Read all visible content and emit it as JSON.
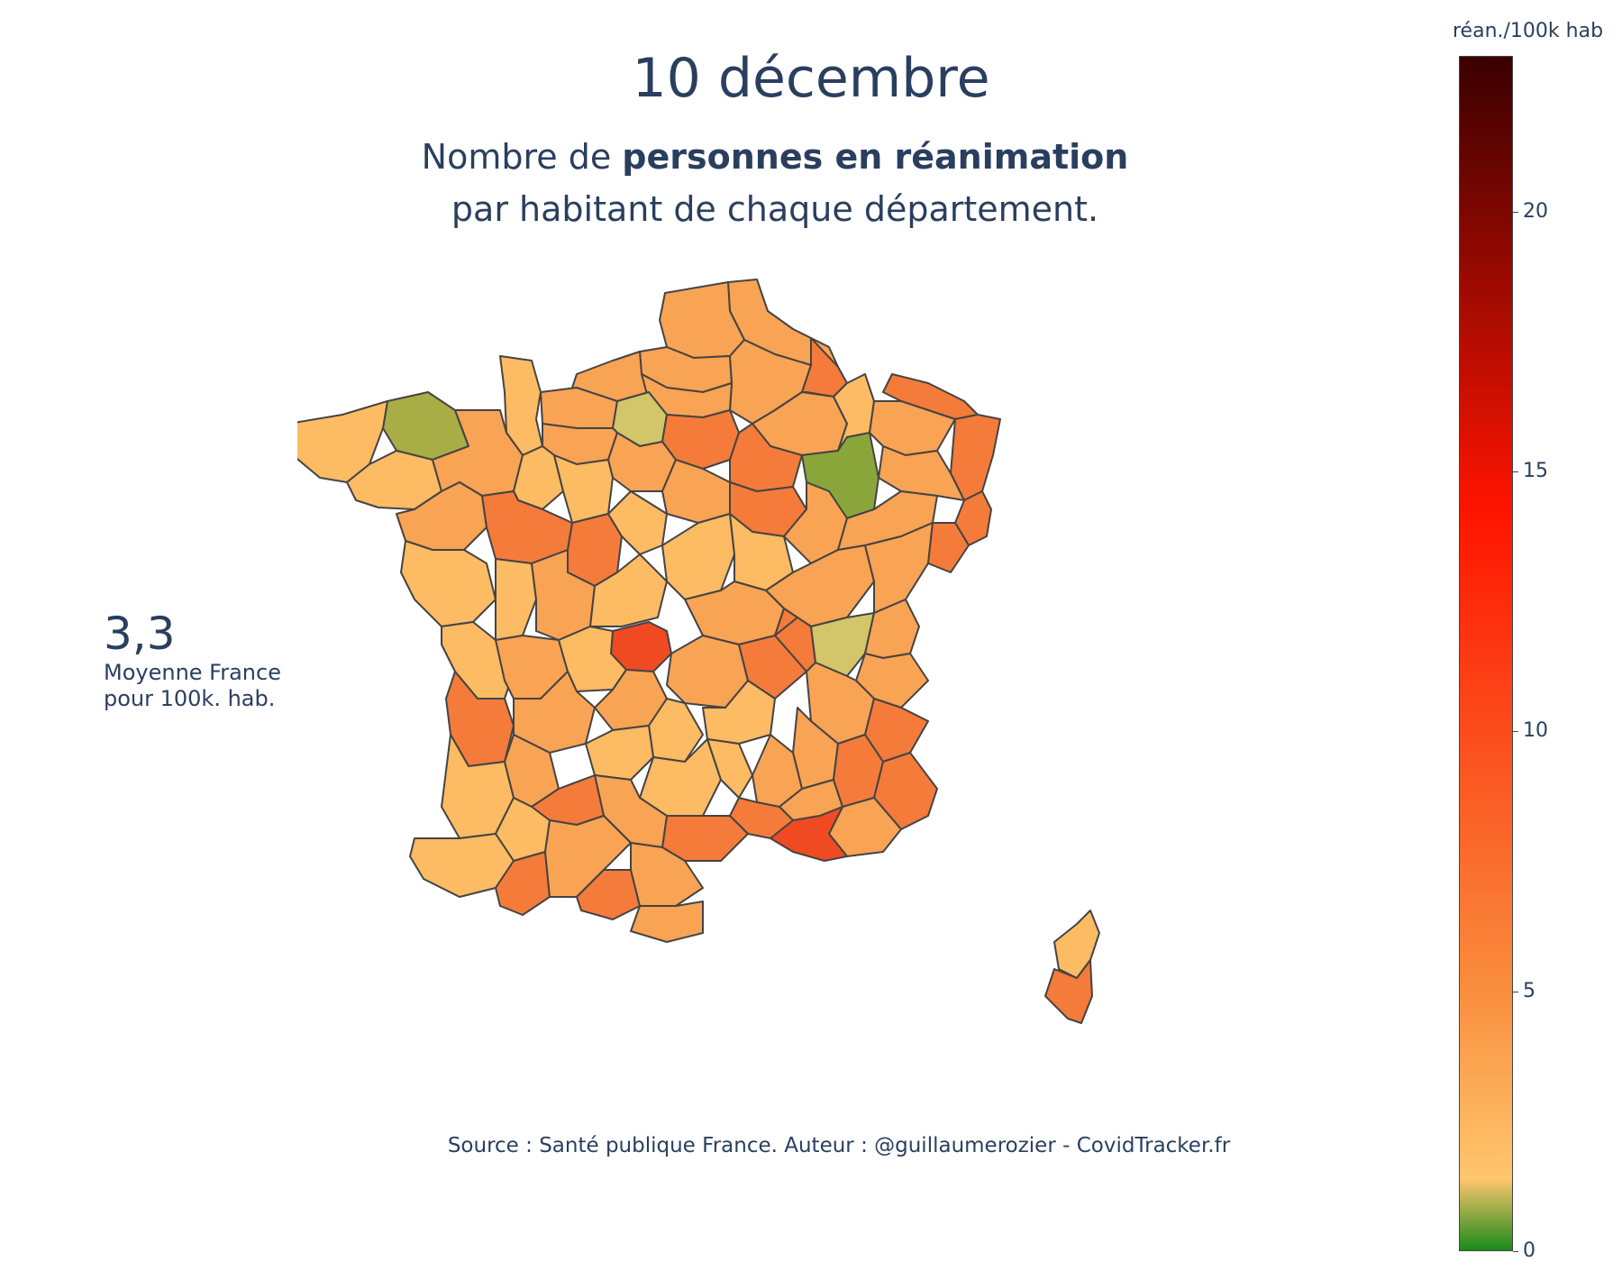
{
  "title": "10 décembre",
  "subtitle": {
    "part1": "Nombre de ",
    "bold": "personnes en réanimation",
    "part2": "par habitant de chaque département."
  },
  "average": {
    "value": "3,3",
    "label_line1": "Moyenne France",
    "label_line2": "pour 100k. hab."
  },
  "source": "Source : Santé publique France. Auteur : @guillaumerozier - CovidTracker.fr",
  "colorbar": {
    "title": "réan./100k hab",
    "ticks": [
      "0",
      "5",
      "10",
      "15",
      "20"
    ],
    "range": [
      0,
      23
    ],
    "colors": {
      "low": "#1a8a1a",
      "mid_low": "#ffc66d",
      "mid": "#f98d3d",
      "high": "#ff1400",
      "max": "#3a0000"
    }
  },
  "map_colors": {
    "border": "#444444",
    "light": "#fdbb63",
    "orange": "#f9a354",
    "deep_orange": "#f47b3a",
    "red_orange": "#f04a22",
    "olive": "#a8ad45",
    "green": "#8aa63a",
    "khaki": "#d2c56a"
  }
}
